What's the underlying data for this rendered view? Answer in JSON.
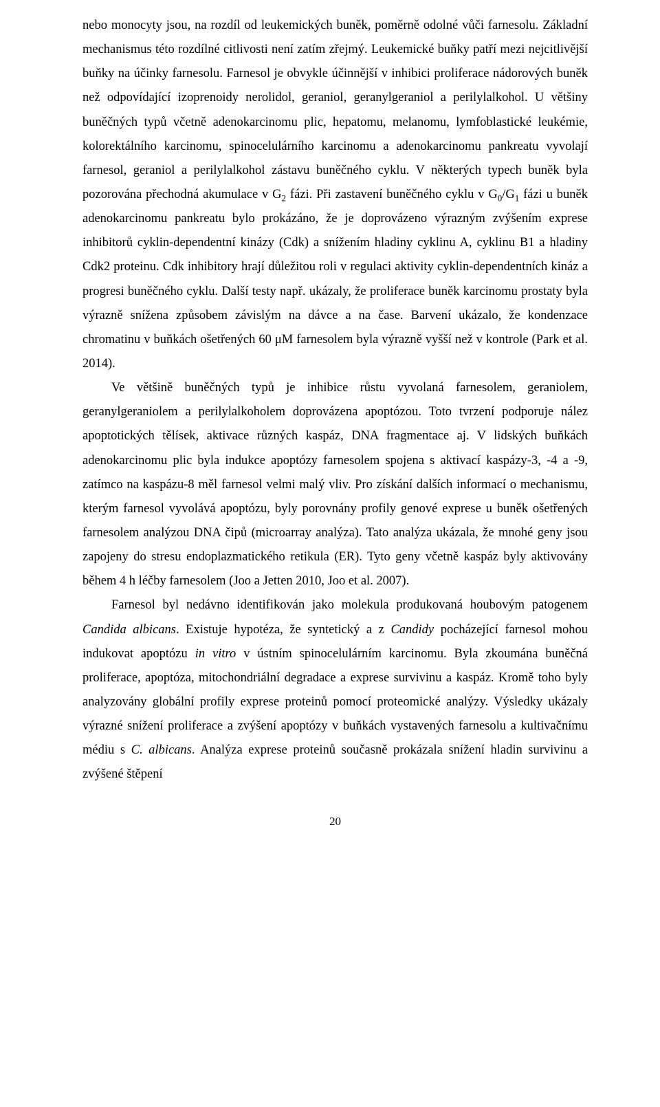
{
  "paragraphs": {
    "p1_part1": "nebo monocyty jsou, na rozdíl od leukemických buněk, poměrně odolné vůči farnesolu. Základní mechanismus této rozdílné citlivosti není zatím zřejmý. Leukemické buňky patří mezi nejcitlivější buňky na účinky farnesolu. Farnesol je obvykle účinnější v inhibici proliferace nádorových buněk než odpovídající izoprenoidy nerolidol, geraniol, geranylgeraniol a perilylalkohol. U většiny buněčných typů včetně adenokarcinomu plic, hepatomu, melanomu, lymfoblastické leukémie, kolorektálního karcinomu, spinocelulárního karcinomu a adenokarcinomu pankreatu vyvolají farnesol, geraniol a perilylalkohol zástavu buněčného cyklu. V některých typech buněk byla pozorována přechodná akumulace v G",
    "p1_sub1": "2",
    "p1_part2": " fázi. Při zastavení buněčného cyklu v G",
    "p1_sub2": "0",
    "p1_part3": "/G",
    "p1_sub3": "1",
    "p1_part4": " fázi u buněk adenokarcinomu pankreatu bylo prokázáno, že je doprovázeno výrazným zvýšením exprese inhibitorů cyklin-dependentní kinázy (Cdk) a snížením hladiny cyklinu A, cyklinu B1 a hladiny Cdk2 proteinu. Cdk inhibitory hrají důležitou roli v regulaci aktivity cyklin-dependentních kináz a progresi buněčného cyklu. Další testy např. ukázaly, že proliferace buněk karcinomu prostaty byla výrazně snížena způsobem závislým na dávce a na čase. Barvení ukázalo, že kondenzace chromatinu v buňkách ošetřených 60 μM farnesolem byla výrazně vyšší než v kontrole (Park et al. 2014).",
    "p2": "Ve většině buněčných typů je inhibice růstu vyvolaná farnesolem, geraniolem, geranylgeraniolem a perilylalkoholem doprovázena apoptózou. Toto tvrzení podporuje nález apoptotických tělísek, aktivace různých kaspáz, DNA fragmentace aj. V lidských buňkách adenokarcinomu plic byla indukce apoptózy farnesolem spojena s aktivací kaspázy-3, -4 a -9, zatímco na kaspázu-8 měl farnesol velmi malý vliv. Pro získání dalších informací o mechanismu, kterým farnesol vyvolává apoptózu, byly porovnány profily genové exprese u buněk ošetřených farnesolem analýzou DNA čipů (microarray analýza). Tato analýza ukázala, že mnohé geny jsou zapojeny do stresu endoplazmatického retikula (ER). Tyto geny včetně kaspáz byly aktivovány během 4 h léčby farnesolem (Joo a Jetten 2010, Joo et al. 2007).",
    "p3_part1": "Farnesol byl nedávno identifikován jako molekula produkovaná houbovým patogenem ",
    "p3_italic1": "Candida albicans",
    "p3_part2": ". Existuje hypotéza, že syntetický a z ",
    "p3_italic2": "Candidy",
    "p3_part3": " pocházející farnesol mohou indukovat apoptózu ",
    "p3_italic3": "in vitro",
    "p3_part4": " v ústním spinocelulárním karcinomu. Byla zkoumána buněčná proliferace, apoptóza, mitochondriální degradace a exprese survivinu a kaspáz. Kromě toho byly analyzovány globální profily exprese proteinů pomocí proteomické analýzy. Výsledky ukázaly výrazné snížení proliferace a zvýšení apoptózy v buňkách vystavených farnesolu a kultivačnímu médiu s ",
    "p3_italic4": "C. albicans",
    "p3_part5": ". Analýza exprese proteinů současně prokázala snížení hladin survivinu a zvýšené štěpení"
  },
  "page_number": "20"
}
